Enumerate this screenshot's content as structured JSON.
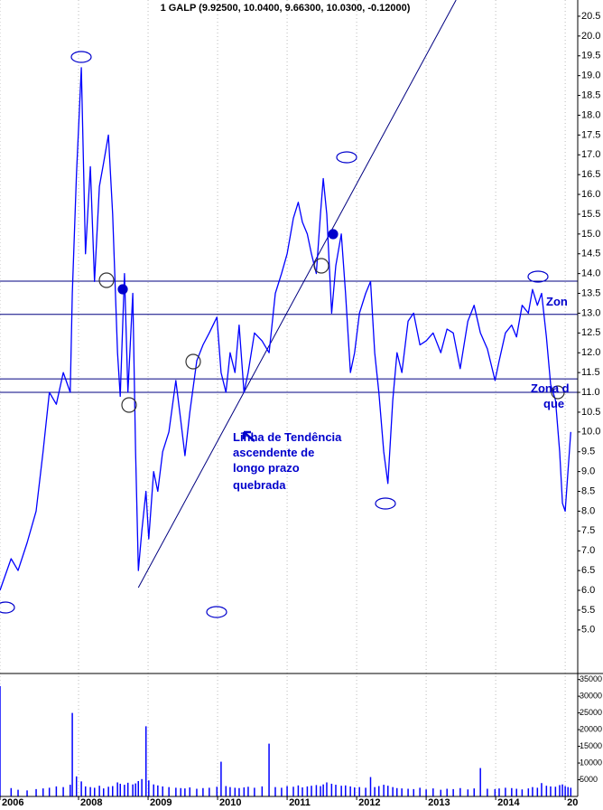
{
  "chart_data": {
    "type": "line",
    "title": "1 GALP (9.92500, 10.0400, 9.66300, 10.0300, -0.12000)",
    "x": [
      2006.87,
      2007.03,
      2007.13,
      2007.26,
      2007.39,
      2007.49,
      2007.58,
      2007.68,
      2007.78,
      2007.88,
      2007.91,
      2007.97,
      2008.04,
      2008.1,
      2008.17,
      2008.23,
      2008.3,
      2008.36,
      2008.43,
      2008.49,
      2008.56,
      2008.6,
      2008.66,
      2008.71,
      2008.78,
      2008.82,
      2008.86,
      2008.91,
      2008.97,
      2009.01,
      2009.08,
      2009.14,
      2009.21,
      2009.3,
      2009.4,
      2009.47,
      2009.53,
      2009.6,
      2009.7,
      2009.79,
      2009.88,
      2009.99,
      2010.05,
      2010.12,
      2010.18,
      2010.25,
      2010.31,
      2010.38,
      2010.44,
      2010.53,
      2010.64,
      2010.74,
      2010.83,
      2010.92,
      2011.0,
      2011.09,
      2011.16,
      2011.22,
      2011.29,
      2011.35,
      2011.42,
      2011.48,
      2011.52,
      2011.57,
      2011.64,
      2011.7,
      2011.78,
      2011.84,
      2011.91,
      2011.97,
      2012.04,
      2012.13,
      2012.2,
      2012.26,
      2012.32,
      2012.39,
      2012.45,
      2012.52,
      2012.58,
      2012.65,
      2012.74,
      2012.82,
      2012.91,
      2013.0,
      2013.1,
      2013.21,
      2013.3,
      2013.39,
      2013.49,
      2013.6,
      2013.69,
      2013.78,
      2013.88,
      2013.99,
      2014.05,
      2014.14,
      2014.23,
      2014.3,
      2014.38,
      2014.47,
      2014.53,
      2014.6,
      2014.66,
      2014.73,
      2014.79,
      2014.86,
      2014.92,
      2014.96,
      2015.0,
      2015.04,
      2015.08
    ],
    "series": [
      {
        "color": "#0000ff",
        "values": [
          6.0,
          6.8,
          6.5,
          7.2,
          8.0,
          9.5,
          11.0,
          10.7,
          11.5,
          11.0,
          13.5,
          16.5,
          19.2,
          14.5,
          16.7,
          13.8,
          16.2,
          16.8,
          17.5,
          15.5,
          12.0,
          10.9,
          14.0,
          11.0,
          13.5,
          9.5,
          6.5,
          7.5,
          8.5,
          7.3,
          9.0,
          8.5,
          9.5,
          10.0,
          11.3,
          10.3,
          9.4,
          10.5,
          11.8,
          12.2,
          12.5,
          12.9,
          11.5,
          11.0,
          12.0,
          11.5,
          12.7,
          11.0,
          11.5,
          12.5,
          12.3,
          12.0,
          13.5,
          14.0,
          14.5,
          15.4,
          15.8,
          15.3,
          15.0,
          14.5,
          14.0,
          15.5,
          16.4,
          15.5,
          13.0,
          14.2,
          15.0,
          13.5,
          11.5,
          12.0,
          13.0,
          13.5,
          13.8,
          12.0,
          11.0,
          9.5,
          8.7,
          10.8,
          12.0,
          11.5,
          12.8,
          13.0,
          12.2,
          12.3,
          12.5,
          12.0,
          12.6,
          12.5,
          11.6,
          12.8,
          13.2,
          12.5,
          12.1,
          11.3,
          11.8,
          12.5,
          12.7,
          12.4,
          13.2,
          13.0,
          13.6,
          13.2,
          13.5,
          12.4,
          11.2,
          10.8,
          9.5,
          8.2,
          8.0,
          9.0,
          10.0
        ]
      }
    ],
    "xlim": [
      2006.87,
      2015.18
    ],
    "xticks": [
      {
        "value": 2006.87,
        "label": "2006"
      },
      2008,
      2009,
      2010,
      2011,
      2012,
      2013,
      2014,
      {
        "value": 2015,
        "label": "20"
      }
    ],
    "ylim": [
      3.9,
      20.91
    ],
    "yticks": [
      {
        "value": 5,
        "label": "5.0"
      },
      5.5,
      {
        "value": 6,
        "label": "6.0"
      },
      6.5,
      {
        "value": 7,
        "label": "7.0"
      },
      7.5,
      {
        "value": 8,
        "label": "8.0"
      },
      8.5,
      {
        "value": 9,
        "label": "9.0"
      },
      9.5,
      {
        "value": 10,
        "label": "10.0"
      },
      10.5,
      {
        "value": 11,
        "label": "11.0"
      },
      11.5,
      {
        "value": 12,
        "label": "12.0"
      },
      12.5,
      {
        "value": 13,
        "label": "13.0"
      },
      13.5,
      {
        "value": 14,
        "label": "14.0"
      },
      14.5,
      {
        "value": 15,
        "label": "15.0"
      },
      15.5,
      {
        "value": 16,
        "label": "16.0"
      },
      16.5,
      {
        "value": 17,
        "label": "17.0"
      },
      17.5,
      {
        "value": 18,
        "label": "18.0"
      },
      18.5,
      {
        "value": 19,
        "label": "19.0"
      },
      19.5,
      {
        "value": 20,
        "label": "20.0"
      },
      20.5
    ],
    "hlines": [
      13.81,
      12.97,
      11.34,
      11.0
    ],
    "hline_color": "#000080",
    "trendline": {
      "x": [
        2008.86,
        2013.43
      ],
      "y": [
        6.07,
        20.91
      ],
      "color": "#000080"
    },
    "volume": {
      "color": "#0000ff",
      "ylim": [
        0,
        36800
      ],
      "yticks": [
        5000,
        10000,
        15000,
        20000,
        25000,
        30000,
        35000
      ],
      "values": [
        33000,
        2500,
        2000,
        1800,
        2200,
        2400,
        2600,
        3000,
        2800,
        3500,
        25000,
        6000,
        4500,
        3000,
        2800,
        2600,
        3200,
        2400,
        2900,
        3100,
        4200,
        3800,
        3500,
        4100,
        3600,
        3900,
        4600,
        5200,
        21000,
        4800,
        3600,
        3300,
        3000,
        2800,
        2600,
        2500,
        2400,
        2700,
        2300,
        2500,
        2600,
        2900,
        10400,
        3100,
        2800,
        2600,
        2500,
        2700,
        2900,
        2600,
        3000,
        15800,
        2800,
        2600,
        3100,
        2900,
        3300,
        2700,
        3000,
        3200,
        3400,
        3100,
        3600,
        4200,
        3800,
        3500,
        3200,
        3300,
        3000,
        2700,
        2800,
        2600,
        5800,
        2800,
        3100,
        3500,
        3200,
        2800,
        2500,
        2400,
        2300,
        2200,
        2600,
        2100,
        2400,
        2000,
        2300,
        2200,
        2500,
        2100,
        2400,
        8500,
        2300,
        2200,
        2400,
        2600,
        2500,
        2300,
        2100,
        2400,
        2800,
        2600,
        4000,
        3200,
        3000,
        2900,
        3400,
        3600,
        3100,
        2800,
        2600
      ]
    },
    "annotations": {
      "trend_note": [
        "Linha de Tendência",
        "ascendente de",
        "longo prazo",
        "quebrada"
      ],
      "zone_1": "Zon",
      "zone_2": "Zona d",
      "zone_3": "que"
    }
  }
}
